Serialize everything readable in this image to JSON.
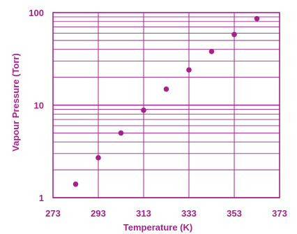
{
  "chart_data": {
    "type": "scatter",
    "title": "",
    "xlabel": "Temperature (K)",
    "ylabel": "Vapour Pressure (Torr)",
    "x_scale": "linear",
    "y_scale": "log",
    "xlim": [
      273,
      373
    ],
    "ylim": [
      1,
      100
    ],
    "x_ticks": [
      273,
      293,
      313,
      333,
      353,
      373
    ],
    "x_tick_labels": [
      "273",
      "293",
      "313",
      "333",
      "353",
      "373"
    ],
    "y_ticks": [
      1,
      10,
      100
    ],
    "y_tick_labels": [
      "1",
      "10",
      "100"
    ],
    "grid": true,
    "legend": "none",
    "colors": {
      "accent": "#a5228c",
      "grid": "#a5228c",
      "points": "#a5228c"
    },
    "series": [
      {
        "points": [
          {
            "x": 283,
            "y": 1.4
          },
          {
            "x": 293,
            "y": 2.7
          },
          {
            "x": 303,
            "y": 5.0
          },
          {
            "x": 313,
            "y": 8.8
          },
          {
            "x": 323,
            "y": 14.9
          },
          {
            "x": 333,
            "y": 24.0
          },
          {
            "x": 343,
            "y": 38.0
          },
          {
            "x": 353,
            "y": 58.0
          },
          {
            "x": 363,
            "y": 86.0
          }
        ]
      }
    ]
  }
}
